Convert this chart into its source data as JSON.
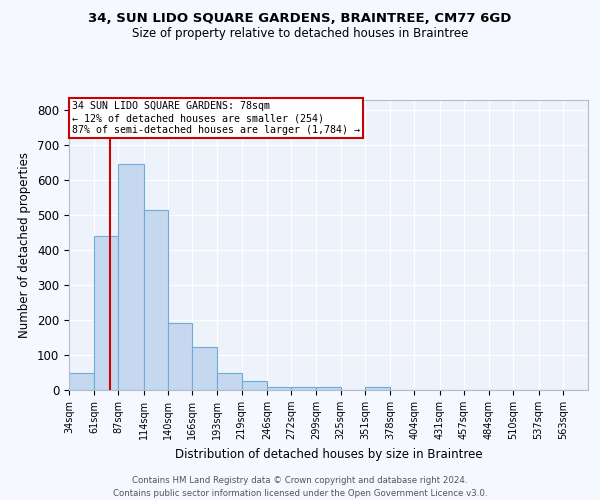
{
  "title": "34, SUN LIDO SQUARE GARDENS, BRAINTREE, CM77 6GD",
  "subtitle": "Size of property relative to detached houses in Braintree",
  "xlabel": "Distribution of detached houses by size in Braintree",
  "ylabel": "Number of detached properties",
  "bar_labels": [
    "34sqm",
    "61sqm",
    "87sqm",
    "114sqm",
    "140sqm",
    "166sqm",
    "193sqm",
    "219sqm",
    "246sqm",
    "272sqm",
    "299sqm",
    "325sqm",
    "351sqm",
    "378sqm",
    "404sqm",
    "431sqm",
    "457sqm",
    "484sqm",
    "510sqm",
    "537sqm",
    "563sqm"
  ],
  "bar_values": [
    50,
    440,
    648,
    515,
    193,
    124,
    50,
    27,
    10,
    8,
    10,
    0,
    10,
    0,
    0,
    0,
    0,
    0,
    0,
    0,
    0
  ],
  "bar_color": "#c5d8f0",
  "bar_edge_color": "#6aaed6",
  "property_line_x": 78,
  "property_line_label": "34 SUN LIDO SQUARE GARDENS: 78sqm",
  "annotation_line1": "← 12% of detached houses are smaller (254)",
  "annotation_line2": "87% of semi-detached houses are larger (1,784) →",
  "annotation_box_color": "#ffffff",
  "annotation_box_edge_color": "#cc0000",
  "red_line_color": "#cc0000",
  "ylim": [
    0,
    830
  ],
  "yticks": [
    0,
    100,
    200,
    300,
    400,
    500,
    600,
    700,
    800
  ],
  "footer1": "Contains HM Land Registry data © Crown copyright and database right 2024.",
  "footer2": "Contains public sector information licensed under the Open Government Licence v3.0.",
  "bg_color": "#f5f8ff",
  "plot_bg_color": "#edf2fb",
  "grid_color": "#ffffff"
}
